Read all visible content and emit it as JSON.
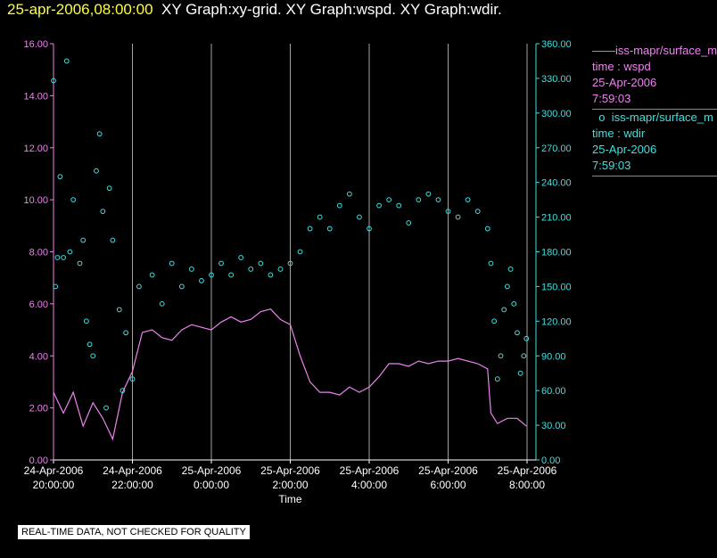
{
  "header": {
    "date": "25-apr-2006,08:00:00",
    "graphs": "XY Graph:xy-grid.  XY Graph:wspd.  XY Graph:wdir."
  },
  "legend": {
    "wspd": {
      "name": "iss-mapr/surface_m",
      "line1": "time : wspd",
      "line2": "25-Apr-2006",
      "line3": "7:59:03"
    },
    "wdir": {
      "name": "iss-mapr/surface_m",
      "line1": "time : wdir",
      "line2": "25-Apr-2006",
      "line3": "7:59:03"
    }
  },
  "footer": {
    "text": "REAL-TIME DATA, NOT CHECKED FOR QUALITY"
  },
  "colors": {
    "wspd": "#ee82ee",
    "wdir": "#40e0e0",
    "grid": "#cccccc",
    "title_date": "#ffff33"
  },
  "chart_data": {
    "type": "line",
    "xlabel": "Time",
    "x_ticks": [
      {
        "hour": 0,
        "line1": "24-Apr-2006",
        "line2": "20:00:00"
      },
      {
        "hour": 2,
        "line1": "24-Apr-2006",
        "line2": "22:00:00"
      },
      {
        "hour": 4,
        "line1": "25-Apr-2006",
        "line2": "0:00:00"
      },
      {
        "hour": 6,
        "line1": "25-Apr-2006",
        "line2": "2:00:00"
      },
      {
        "hour": 8,
        "line1": "25-Apr-2006",
        "line2": "4:00:00"
      },
      {
        "hour": 10,
        "line1": "25-Apr-2006",
        "line2": "6:00:00"
      },
      {
        "hour": 12,
        "line1": "25-Apr-2006",
        "line2": "8:00:00"
      }
    ],
    "xlim": [
      "24-Apr-2006 20:00:00",
      "25-Apr-2006 08:00:00"
    ],
    "y_left": {
      "label": "",
      "ylim": [
        0,
        16
      ],
      "ticks": [
        "0.00",
        "2.00",
        "4.00",
        "6.00",
        "8.00",
        "10.00",
        "12.00",
        "14.00",
        "16.00"
      ]
    },
    "y_right": {
      "label": "",
      "ylim": [
        0,
        360
      ],
      "ticks": [
        "0.00",
        "30.00",
        "60.00",
        "90.00",
        "120.00",
        "150.00",
        "180.00",
        "210.00",
        "240.00",
        "270.00",
        "300.00",
        "330.00",
        "360.00"
      ]
    },
    "grid": "vertical lines at x ticks",
    "series": [
      {
        "name": "iss-mapr/surface_m time : wspd",
        "axis": "left",
        "style": "line",
        "points": [
          [
            "24-Apr-2006 20:00",
            2.6
          ],
          [
            "24-Apr-2006 20:15",
            1.8
          ],
          [
            "24-Apr-2006 20:30",
            2.6
          ],
          [
            "24-Apr-2006 20:45",
            1.3
          ],
          [
            "24-Apr-2006 21:00",
            2.2
          ],
          [
            "24-Apr-2006 21:15",
            1.6
          ],
          [
            "24-Apr-2006 21:30",
            0.8
          ],
          [
            "24-Apr-2006 21:45",
            2.6
          ],
          [
            "24-Apr-2006 22:00",
            3.4
          ],
          [
            "24-Apr-2006 22:15",
            4.9
          ],
          [
            "24-Apr-2006 22:30",
            5.0
          ],
          [
            "24-Apr-2006 22:45",
            4.7
          ],
          [
            "24-Apr-2006 23:00",
            4.6
          ],
          [
            "24-Apr-2006 23:15",
            5.0
          ],
          [
            "24-Apr-2006 23:30",
            5.2
          ],
          [
            "24-Apr-2006 23:45",
            5.1
          ],
          [
            "25-Apr-2006 00:00",
            5.0
          ],
          [
            "25-Apr-2006 00:15",
            5.3
          ],
          [
            "25-Apr-2006 00:30",
            5.5
          ],
          [
            "25-Apr-2006 00:45",
            5.3
          ],
          [
            "25-Apr-2006 01:00",
            5.4
          ],
          [
            "25-Apr-2006 01:15",
            5.7
          ],
          [
            "25-Apr-2006 01:30",
            5.8
          ],
          [
            "25-Apr-2006 01:45",
            5.4
          ],
          [
            "25-Apr-2006 02:00",
            5.2
          ],
          [
            "25-Apr-2006 02:15",
            4.0
          ],
          [
            "25-Apr-2006 02:30",
            3.0
          ],
          [
            "25-Apr-2006 02:45",
            2.6
          ],
          [
            "25-Apr-2006 03:00",
            2.6
          ],
          [
            "25-Apr-2006 03:15",
            2.5
          ],
          [
            "25-Apr-2006 03:30",
            2.8
          ],
          [
            "25-Apr-2006 03:45",
            2.6
          ],
          [
            "25-Apr-2006 04:00",
            2.8
          ],
          [
            "25-Apr-2006 04:15",
            3.2
          ],
          [
            "25-Apr-2006 04:30",
            3.7
          ],
          [
            "25-Apr-2006 04:45",
            3.7
          ],
          [
            "25-Apr-2006 05:00",
            3.6
          ],
          [
            "25-Apr-2006 05:15",
            3.8
          ],
          [
            "25-Apr-2006 05:30",
            3.7
          ],
          [
            "25-Apr-2006 05:45",
            3.8
          ],
          [
            "25-Apr-2006 06:00",
            3.8
          ],
          [
            "25-Apr-2006 06:15",
            3.9
          ],
          [
            "25-Apr-2006 06:30",
            3.8
          ],
          [
            "25-Apr-2006 06:45",
            3.7
          ],
          [
            "25-Apr-2006 07:00",
            3.5
          ],
          [
            "25-Apr-2006 07:05",
            1.8
          ],
          [
            "25-Apr-2006 07:15",
            1.4
          ],
          [
            "25-Apr-2006 07:30",
            1.6
          ],
          [
            "25-Apr-2006 07:45",
            1.6
          ],
          [
            "25-Apr-2006 07:59",
            1.3
          ]
        ]
      },
      {
        "name": "iss-mapr/surface_m time : wdir",
        "axis": "right",
        "style": "circle markers",
        "points": [
          [
            "24-Apr-2006 20:00",
            328
          ],
          [
            "24-Apr-2006 20:03",
            150
          ],
          [
            "24-Apr-2006 20:06",
            175
          ],
          [
            "24-Apr-2006 20:10",
            245
          ],
          [
            "24-Apr-2006 20:15",
            175
          ],
          [
            "24-Apr-2006 20:20",
            345
          ],
          [
            "24-Apr-2006 20:25",
            180
          ],
          [
            "24-Apr-2006 20:30",
            225
          ],
          [
            "24-Apr-2006 20:40",
            170
          ],
          [
            "24-Apr-2006 20:45",
            190
          ],
          [
            "24-Apr-2006 20:50",
            120
          ],
          [
            "24-Apr-2006 20:55",
            100
          ],
          [
            "24-Apr-2006 21:00",
            90
          ],
          [
            "24-Apr-2006 21:05",
            250
          ],
          [
            "24-Apr-2006 21:10",
            282
          ],
          [
            "24-Apr-2006 21:15",
            215
          ],
          [
            "24-Apr-2006 21:20",
            45
          ],
          [
            "24-Apr-2006 21:25",
            235
          ],
          [
            "24-Apr-2006 21:30",
            190
          ],
          [
            "24-Apr-2006 21:40",
            130
          ],
          [
            "24-Apr-2006 21:45",
            60
          ],
          [
            "24-Apr-2006 21:50",
            110
          ],
          [
            "24-Apr-2006 22:00",
            70
          ],
          [
            "24-Apr-2006 22:10",
            150
          ],
          [
            "24-Apr-2006 22:30",
            160
          ],
          [
            "24-Apr-2006 22:45",
            135
          ],
          [
            "24-Apr-2006 23:00",
            170
          ],
          [
            "24-Apr-2006 23:15",
            150
          ],
          [
            "24-Apr-2006 23:30",
            165
          ],
          [
            "24-Apr-2006 23:45",
            155
          ],
          [
            "25-Apr-2006 00:00",
            160
          ],
          [
            "25-Apr-2006 00:15",
            170
          ],
          [
            "25-Apr-2006 00:30",
            160
          ],
          [
            "25-Apr-2006 00:45",
            175
          ],
          [
            "25-Apr-2006 01:00",
            165
          ],
          [
            "25-Apr-2006 01:15",
            170
          ],
          [
            "25-Apr-2006 01:30",
            160
          ],
          [
            "25-Apr-2006 01:45",
            165
          ],
          [
            "25-Apr-2006 02:00",
            170
          ],
          [
            "25-Apr-2006 02:15",
            180
          ],
          [
            "25-Apr-2006 02:30",
            200
          ],
          [
            "25-Apr-2006 02:45",
            210
          ],
          [
            "25-Apr-2006 03:00",
            200
          ],
          [
            "25-Apr-2006 03:15",
            220
          ],
          [
            "25-Apr-2006 03:30",
            230
          ],
          [
            "25-Apr-2006 03:45",
            210
          ],
          [
            "25-Apr-2006 04:00",
            200
          ],
          [
            "25-Apr-2006 04:15",
            220
          ],
          [
            "25-Apr-2006 04:30",
            225
          ],
          [
            "25-Apr-2006 04:45",
            220
          ],
          [
            "25-Apr-2006 05:00",
            205
          ],
          [
            "25-Apr-2006 05:15",
            225
          ],
          [
            "25-Apr-2006 05:30",
            230
          ],
          [
            "25-Apr-2006 05:45",
            225
          ],
          [
            "25-Apr-2006 06:00",
            215
          ],
          [
            "25-Apr-2006 06:15",
            210
          ],
          [
            "25-Apr-2006 06:30",
            225
          ],
          [
            "25-Apr-2006 06:45",
            215
          ],
          [
            "25-Apr-2006 07:00",
            200
          ],
          [
            "25-Apr-2006 07:05",
            170
          ],
          [
            "25-Apr-2006 07:10",
            120
          ],
          [
            "25-Apr-2006 07:15",
            70
          ],
          [
            "25-Apr-2006 07:20",
            90
          ],
          [
            "25-Apr-2006 07:25",
            130
          ],
          [
            "25-Apr-2006 07:30",
            150
          ],
          [
            "25-Apr-2006 07:35",
            165
          ],
          [
            "25-Apr-2006 07:40",
            135
          ],
          [
            "25-Apr-2006 07:45",
            110
          ],
          [
            "25-Apr-2006 07:50",
            75
          ],
          [
            "25-Apr-2006 07:55",
            90
          ],
          [
            "25-Apr-2006 07:59",
            105
          ]
        ]
      }
    ]
  }
}
